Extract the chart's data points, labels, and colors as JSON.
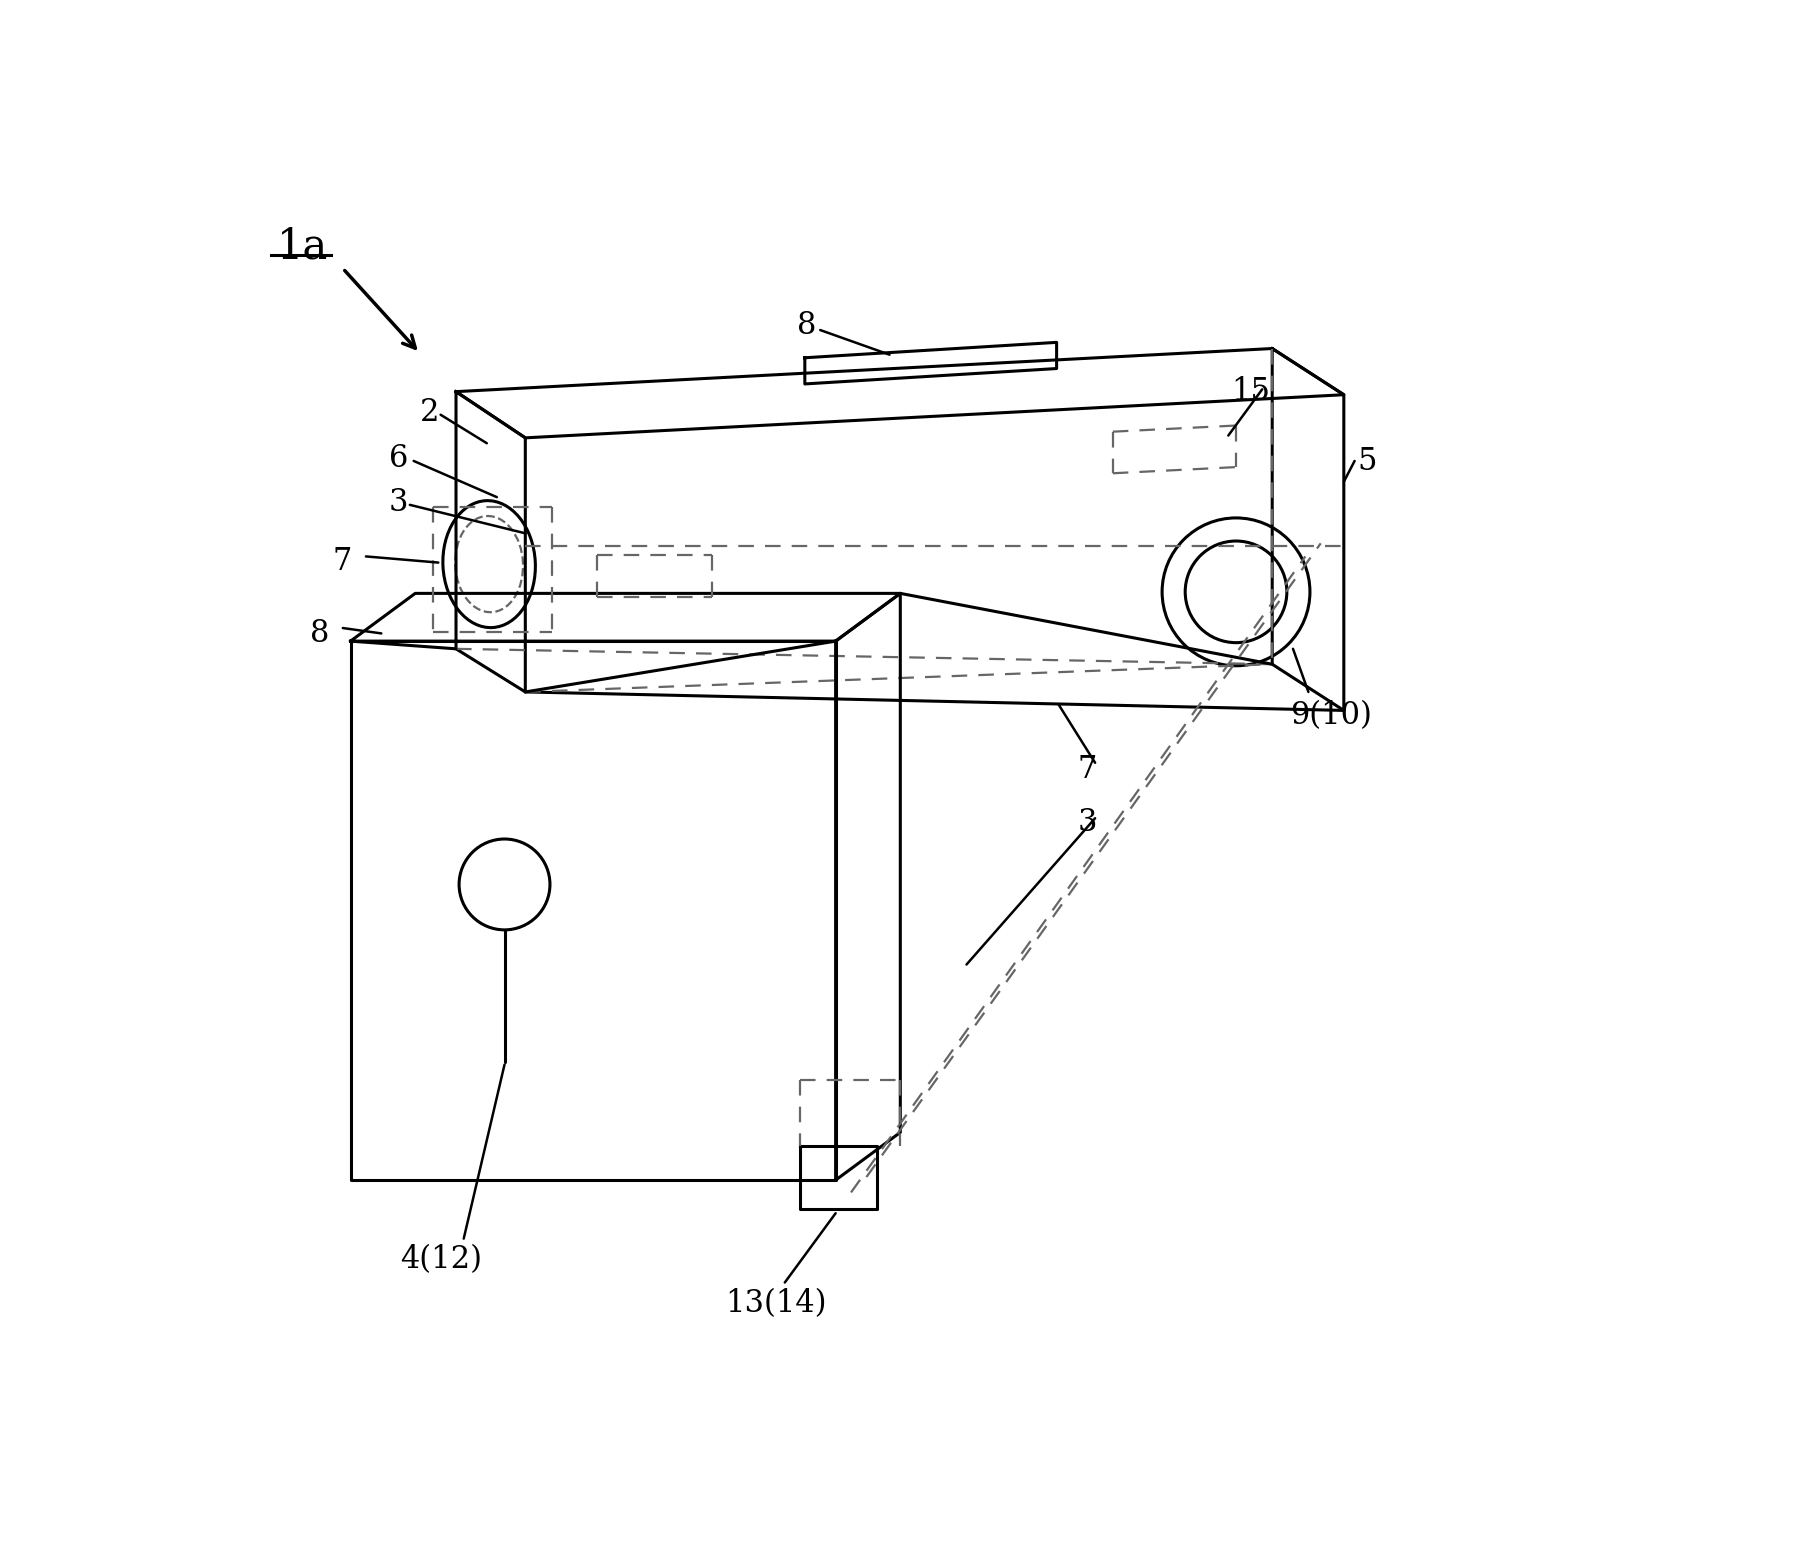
{
  "bg_color": "#ffffff",
  "lc": "#000000",
  "dc": "#666666",
  "fig_width": 17.95,
  "fig_height": 15.44
}
